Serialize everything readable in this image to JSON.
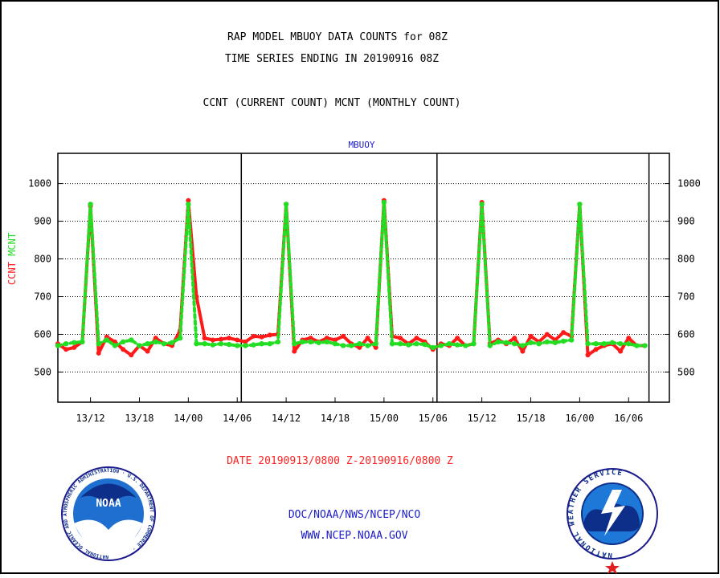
{
  "header": {
    "title_line1": "RAP MODEL MBUOY DATA COUNTS for 08Z",
    "title_line2": "TIME SERIES ENDING IN 20190916 08Z",
    "subtitle": "CCNT (CURRENT COUNT) MCNT (MONTHLY COUNT)"
  },
  "footer": {
    "date_range": "DATE 20190913/0800 Z-20190916/0800 Z",
    "org_path": "DOC/NOAA/NWS/NCEP/NCO",
    "website": "WWW.NCEP.NOAA.GOV"
  },
  "logos": {
    "left_name": "NOAA",
    "left_ring_text": "NATIONAL OCEANIC AND ATMOSPHERIC ADMINISTRATION · U.S. DEPARTMENT OF COMMERCE ·",
    "right_ring_text": "NATIONAL WEATHER SERVICE"
  },
  "colors": {
    "ccnt": "#ff1a1a",
    "mcnt": "#22dd22",
    "label_blue": "#1a1acc",
    "axis": "#000000",
    "date_red": "#ff2222"
  },
  "chart_data": {
    "type": "line",
    "title": "MBUOY",
    "ylabel_parts": [
      "CCNT",
      "MCNT"
    ],
    "ylim": [
      420,
      1080
    ],
    "yticks": [
      500,
      600,
      700,
      800,
      900,
      1000
    ],
    "x_unit": "hours",
    "xlim": [
      0,
      75
    ],
    "xtick_positions": [
      4,
      10,
      16,
      22,
      28,
      34,
      40,
      46,
      52,
      58,
      64,
      70
    ],
    "xtick_labels": [
      "13/12",
      "13/18",
      "14/00",
      "14/06",
      "14/12",
      "14/18",
      "15/00",
      "15/06",
      "15/12",
      "15/18",
      "16/00",
      "16/06"
    ],
    "day_boundaries": [
      22.5,
      46.5,
      72.5
    ],
    "grid": true,
    "series": [
      {
        "name": "CCNT",
        "style": "solid",
        "x": [
          0,
          1,
          2,
          3,
          4,
          5,
          6,
          7,
          8,
          9,
          10,
          11,
          12,
          13,
          14,
          15,
          16,
          17,
          18,
          19,
          20,
          21,
          22,
          23,
          24,
          25,
          26,
          27,
          28,
          29,
          30,
          31,
          32,
          33,
          34,
          35,
          36,
          37,
          38,
          39,
          40,
          41,
          42,
          43,
          44,
          45,
          46,
          47,
          48,
          49,
          50,
          51,
          52,
          53,
          54,
          55,
          56,
          57,
          58,
          59,
          60,
          61,
          62,
          63,
          64,
          65,
          66,
          67,
          68,
          69,
          70,
          71,
          72
        ],
        "values": [
          575,
          560,
          565,
          580,
          940,
          550,
          593,
          580,
          560,
          545,
          570,
          555,
          590,
          575,
          570,
          610,
          955,
          700,
          590,
          585,
          587,
          590,
          585,
          580,
          595,
          593,
          598,
          600,
          945,
          555,
          585,
          590,
          580,
          590,
          585,
          595,
          575,
          565,
          590,
          565,
          955,
          595,
          590,
          575,
          590,
          580,
          560,
          575,
          570,
          590,
          570,
          575,
          950,
          575,
          585,
          575,
          590,
          555,
          595,
          580,
          600,
          585,
          605,
          595,
          945,
          545,
          560,
          570,
          575,
          555,
          590,
          570,
          570
        ]
      },
      {
        "name": "MCNT",
        "style": "dotted",
        "x": [
          0,
          1,
          2,
          3,
          4,
          5,
          6,
          7,
          8,
          9,
          10,
          11,
          12,
          13,
          14,
          15,
          16,
          17,
          18,
          19,
          20,
          21,
          22,
          23,
          24,
          25,
          26,
          27,
          28,
          29,
          30,
          31,
          32,
          33,
          34,
          35,
          36,
          37,
          38,
          39,
          40,
          41,
          42,
          43,
          44,
          45,
          46,
          47,
          48,
          49,
          50,
          51,
          52,
          53,
          54,
          55,
          56,
          57,
          58,
          59,
          60,
          61,
          62,
          63,
          64,
          65,
          66,
          67,
          68,
          69,
          70,
          71,
          72
        ],
        "values": [
          570,
          575,
          578,
          580,
          945,
          575,
          585,
          570,
          580,
          585,
          570,
          575,
          580,
          575,
          578,
          590,
          945,
          575,
          575,
          572,
          575,
          573,
          570,
          570,
          572,
          575,
          575,
          580,
          945,
          575,
          580,
          580,
          578,
          580,
          575,
          570,
          570,
          575,
          570,
          575,
          950,
          575,
          575,
          572,
          575,
          573,
          565,
          570,
          575,
          572,
          570,
          575,
          945,
          570,
          580,
          578,
          575,
          570,
          578,
          575,
          580,
          578,
          582,
          585,
          945,
          575,
          575,
          575,
          578,
          575,
          575,
          570,
          570
        ]
      }
    ]
  }
}
